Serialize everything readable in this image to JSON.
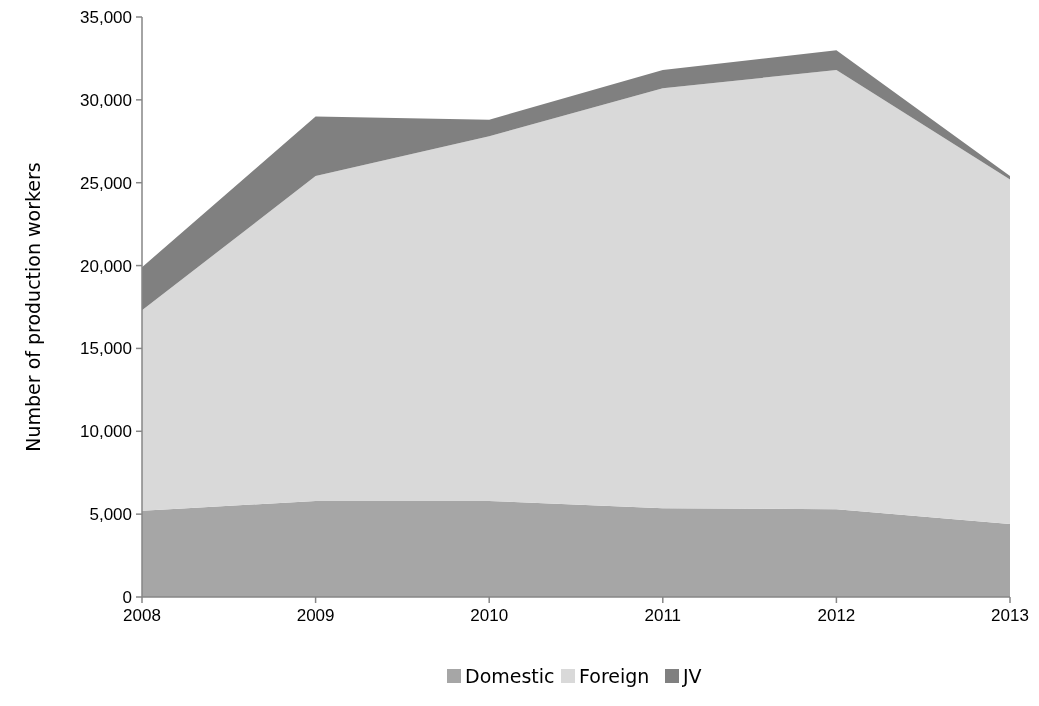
{
  "chart_data": {
    "type": "area",
    "stacked": true,
    "ylabel": "Number of production workers",
    "x": [
      2008,
      2009,
      2010,
      2011,
      2012,
      2013
    ],
    "xlim": [
      2008,
      2013
    ],
    "xticks": [
      2008,
      2009,
      2010,
      2011,
      2012,
      2013
    ],
    "ylim": [
      0,
      35000
    ],
    "yticks": [
      {
        "value": 0,
        "label": "0"
      },
      {
        "value": 5000,
        "label": "5,000"
      },
      {
        "value": 10000,
        "label": "10,000"
      },
      {
        "value": 15000,
        "label": "15,000"
      },
      {
        "value": 20000,
        "label": "20,000"
      },
      {
        "value": 25000,
        "label": "25,000"
      },
      {
        "value": 30000,
        "label": "30,000"
      },
      {
        "value": 35000,
        "label": "35,000"
      }
    ],
    "series": [
      {
        "name": "Domestic",
        "color": "#a6a6a6",
        "values": [
          5200,
          5800,
          5800,
          5350,
          5300,
          4400
        ]
      },
      {
        "name": "Foreign",
        "color": "#d9d9d9",
        "values": [
          12100,
          19600,
          22000,
          25350,
          26500,
          20800
        ]
      },
      {
        "name": "JV",
        "color": "#808080",
        "values": [
          2600,
          3600,
          1000,
          1100,
          1200,
          200
        ]
      }
    ],
    "grid": false,
    "legend": "bottom"
  }
}
